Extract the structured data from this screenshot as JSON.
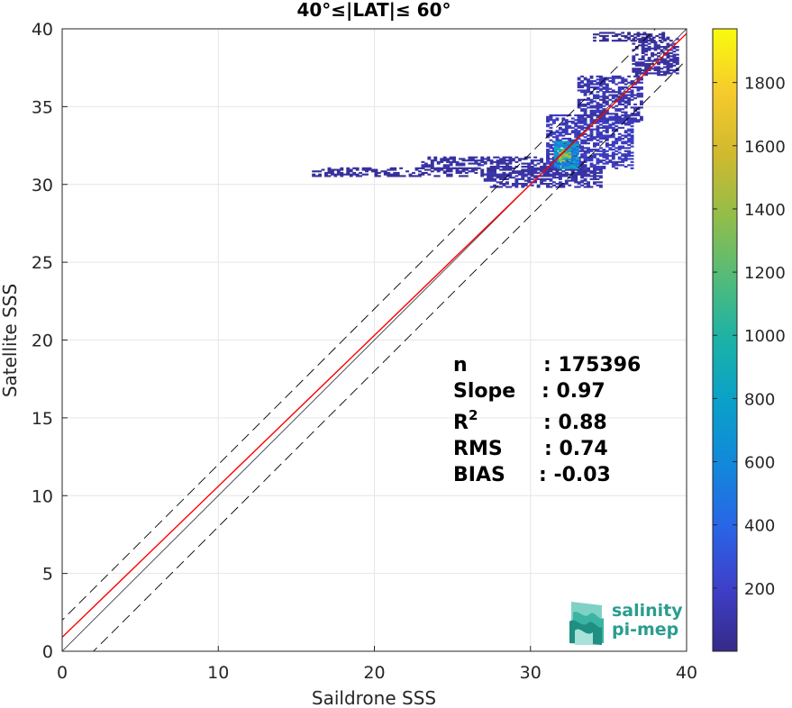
{
  "chart_data": {
    "type": "heatmap",
    "title": "40°≤|LAT|≤ 60°",
    "xlabel": "Saildrone SSS",
    "ylabel": "Satellite SSS",
    "xlim": [
      0,
      40
    ],
    "ylim": [
      0,
      40
    ],
    "xticks": [
      "0",
      "10",
      "20",
      "30",
      "40"
    ],
    "yticks": [
      "0",
      "5",
      "10",
      "15",
      "20",
      "25",
      "30",
      "35",
      "40"
    ],
    "grid": true,
    "colorbar": {
      "range": [
        0,
        1970
      ],
      "ticks": [
        "200",
        "400",
        "600",
        "800",
        "1000",
        "1200",
        "1400",
        "1600",
        "1800"
      ],
      "colormap": "parula"
    },
    "lines": [
      {
        "kind": "one-to-one",
        "style": "solid",
        "color": "#000000",
        "slope": 1,
        "intercept": 0
      },
      {
        "kind": "upper-envelope",
        "style": "dashed",
        "color": "#000000",
        "slope": 1,
        "intercept": 2
      },
      {
        "kind": "lower-envelope",
        "style": "dashed",
        "color": "#000000",
        "slope": 1,
        "intercept": -2
      },
      {
        "kind": "regression-fit",
        "style": "solid",
        "color": "#ff0000",
        "slope": 0.97,
        "intercept": 0.9
      }
    ],
    "density_regions": [
      {
        "x": [
          16.0,
          34.0
        ],
        "y": [
          30.5,
          31.1
        ],
        "level": 0.03
      },
      {
        "x": [
          23.0,
          33.5
        ],
        "y": [
          31.0,
          31.8
        ],
        "level": 0.04
      },
      {
        "x": [
          27.0,
          34.5
        ],
        "y": [
          29.8,
          31.0
        ],
        "level": 0.05
      },
      {
        "x": [
          31.0,
          36.5
        ],
        "y": [
          31.0,
          34.5
        ],
        "level": 0.08
      },
      {
        "x": [
          33.0,
          37.2
        ],
        "y": [
          34.0,
          37.0
        ],
        "level": 0.06
      },
      {
        "x": [
          36.5,
          39.5
        ],
        "y": [
          37.0,
          39.5
        ],
        "level": 0.04
      },
      {
        "x": [
          34.0,
          38.5
        ],
        "y": [
          39.2,
          39.8
        ],
        "level": 0.02
      },
      {
        "x": [
          31.5,
          33.0
        ],
        "y": [
          31.0,
          32.8
        ],
        "level": 0.35
      },
      {
        "x": [
          31.8,
          32.5
        ],
        "y": [
          31.5,
          32.3
        ],
        "level": 0.6
      }
    ],
    "stats": [
      {
        "label": "n",
        "value": ": 175396"
      },
      {
        "label": "Slope",
        "value": ": 0.97"
      },
      {
        "label": "R",
        "sup": "2",
        "value": ": 0.88"
      },
      {
        "label": "RMS",
        "value": ": 0.74"
      },
      {
        "label": "BIAS",
        "value": ": -0.03"
      }
    ]
  },
  "logo": {
    "line1": "salinity",
    "line2": "pi-mep"
  }
}
